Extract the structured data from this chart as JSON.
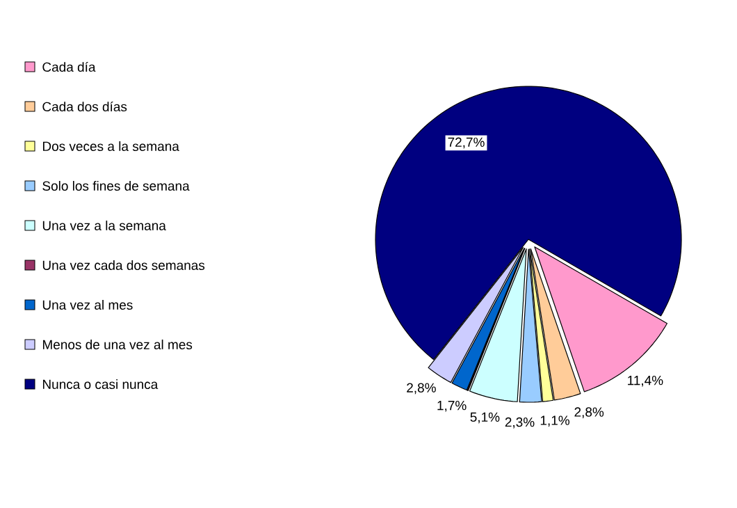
{
  "chart_data": {
    "type": "pie",
    "categories": [
      "Cada día",
      "Cada dos días",
      "Dos veces a la semana",
      "Solo los fines de semana",
      "Una vez a la semana",
      "Una vez cada dos semanas",
      "Una vez al mes",
      "Menos de una vez al mes",
      "Nunca o casi nunca"
    ],
    "values": [
      11.4,
      2.8,
      1.1,
      2.3,
      5.1,
      0.1,
      1.7,
      2.8,
      72.7
    ],
    "value_labels": [
      "11,4%",
      "2,8%",
      "1,1%",
      "2,3%",
      "5,1%",
      null,
      "1,7%",
      "2,8%",
      "72,7%"
    ],
    "colors": [
      "#ff99cc",
      "#ffcc99",
      "#ffff99",
      "#99ccff",
      "#ccffff",
      "#993366",
      "#0066cc",
      "#ccccff",
      "#000080"
    ],
    "legend": "left"
  }
}
